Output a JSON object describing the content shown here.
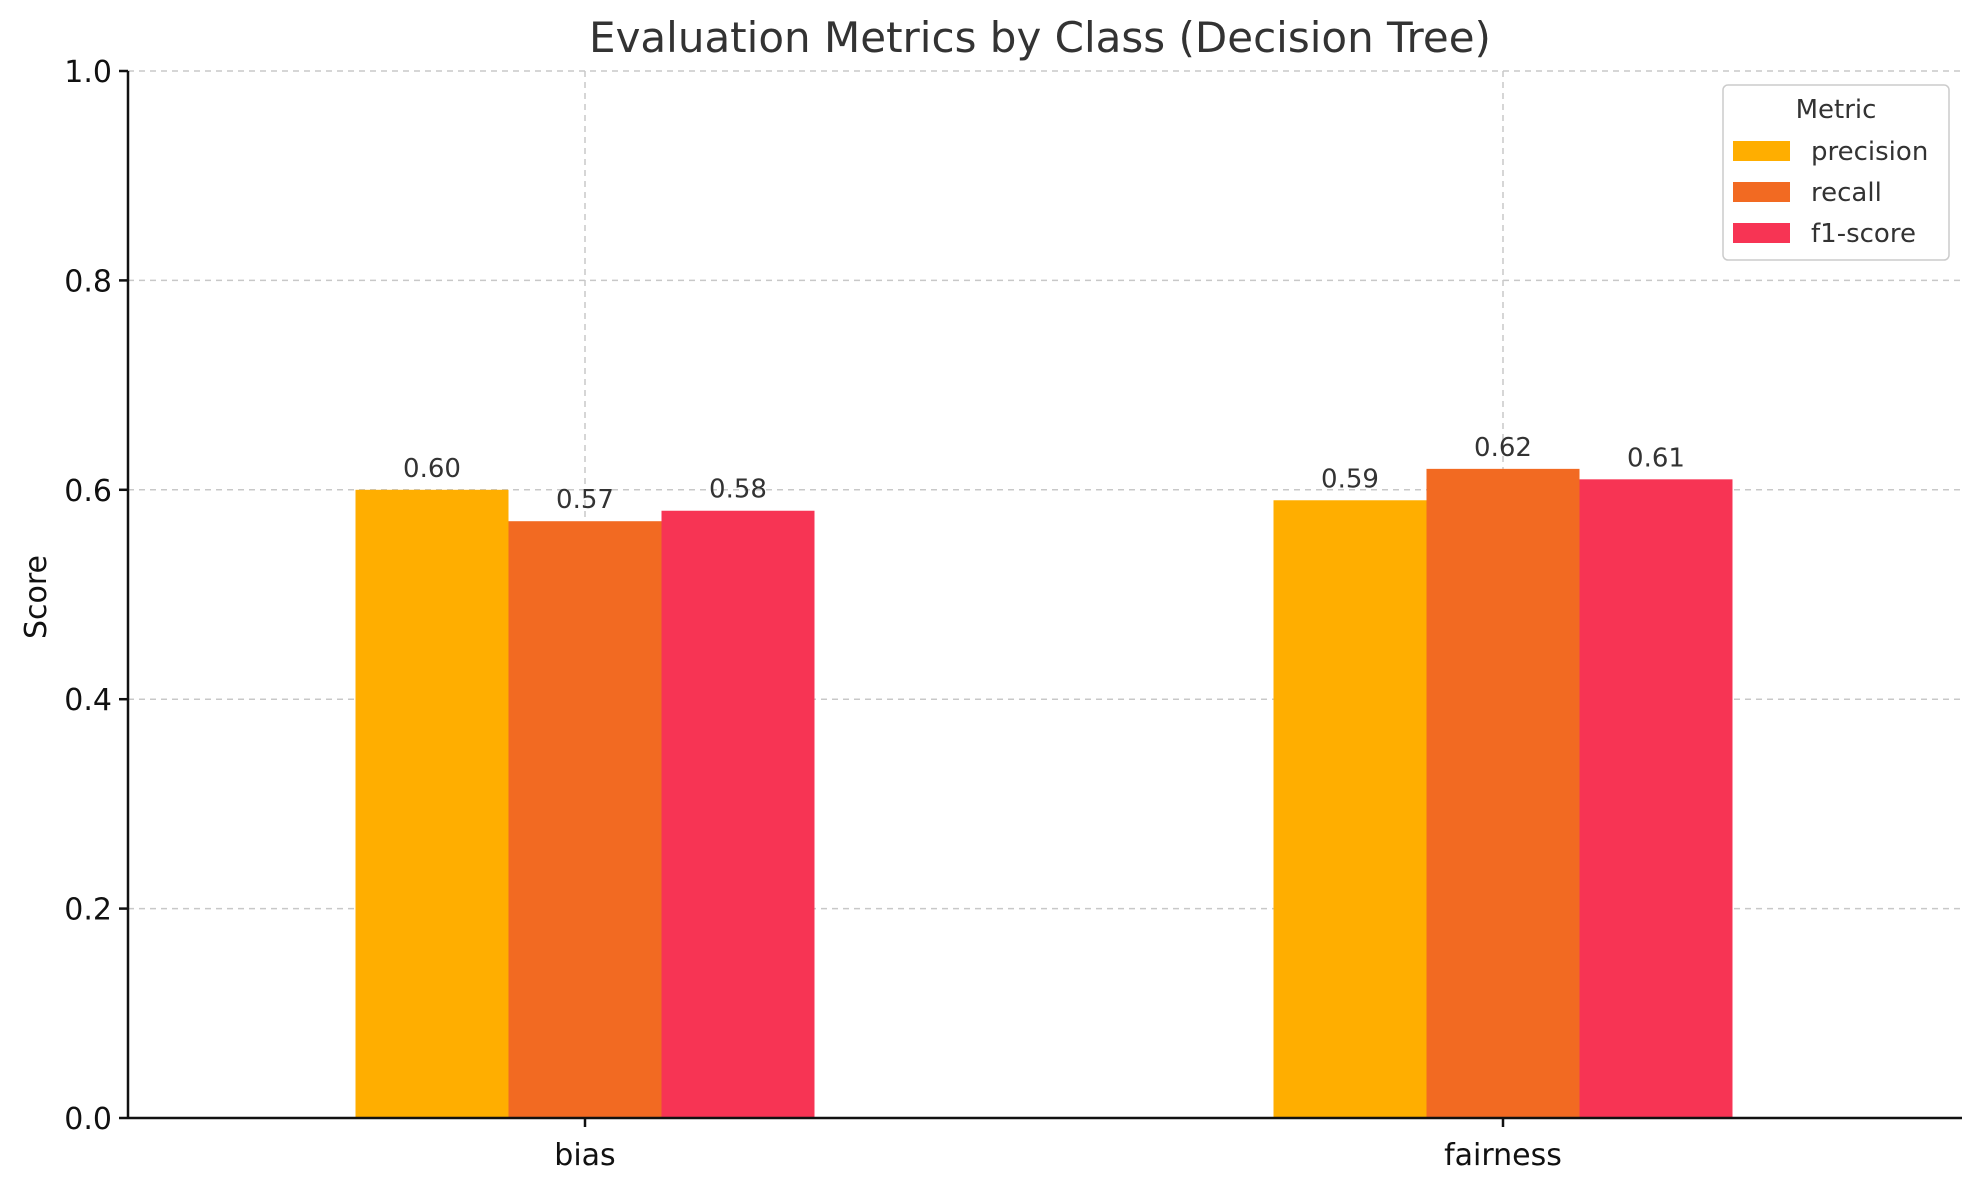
{
  "chart_data": {
    "type": "bar",
    "title": "Evaluation Metrics by Class (Decision Tree)",
    "xlabel": "",
    "ylabel": "Score",
    "ylim": [
      0,
      1
    ],
    "yticks": [
      "0.0",
      "0.2",
      "0.4",
      "0.6",
      "0.8",
      "1.0"
    ],
    "categories": [
      "bias",
      "fairness"
    ],
    "series": [
      {
        "name": "precision",
        "values": [
          0.6,
          0.59
        ],
        "labels": [
          "0.60",
          "0.59"
        ],
        "color": "#FFAE00"
      },
      {
        "name": "recall",
        "values": [
          0.57,
          0.62
        ],
        "labels": [
          "0.57",
          "0.62"
        ],
        "color": "#F26A22"
      },
      {
        "name": "f1-score",
        "values": [
          0.58,
          0.61
        ],
        "labels": [
          "0.58",
          "0.61"
        ],
        "color": "#F73454"
      }
    ],
    "legend": {
      "title": "Metric",
      "position": "top-right"
    },
    "grid": true
  }
}
